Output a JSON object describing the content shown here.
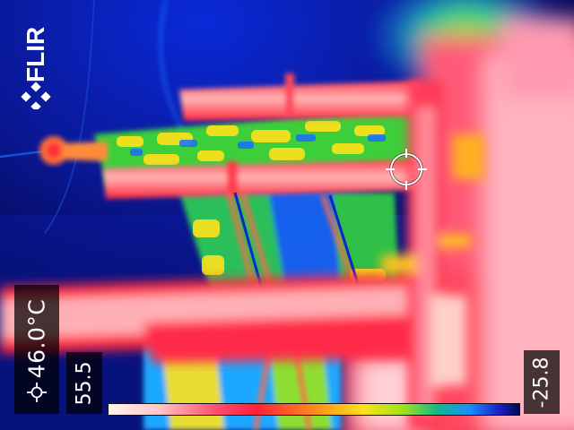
{
  "logo": {
    "text": "FLIR",
    "icon": "flir-diamond-logo-icon"
  },
  "measurement": {
    "spot_temperature": "46.0°C",
    "icon": "spot-meter-icon"
  },
  "scale": {
    "max": "55.5",
    "min": "-25.8",
    "palette": "rainbow-hc"
  },
  "colors": {
    "hot": "#fff4f0",
    "warm": "#ff1f3a",
    "mid": "#ffe21a",
    "cool": "#1a8cff",
    "cold": "#000850"
  }
}
